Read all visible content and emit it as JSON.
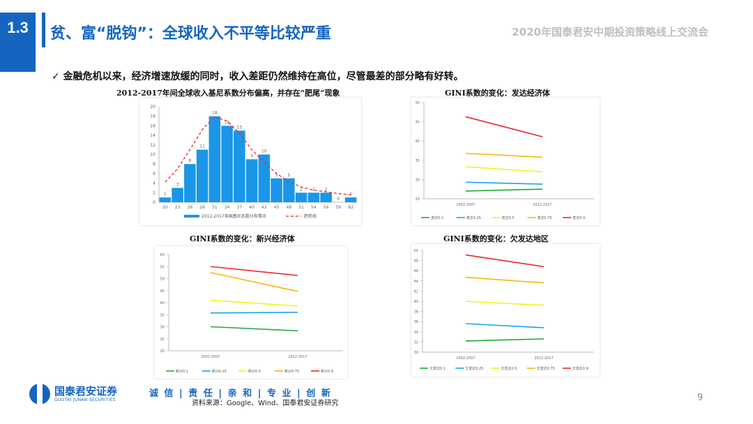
{
  "header": {
    "section_number": "1.3",
    "title": "贫、富“脱钩”：全球收入不平等比较严重",
    "conference": "2020年国泰君安中期投资策略线上交流会"
  },
  "bullet": "✓ 金融危机以来，经济增速放缓的同时，收入差距仍然维持在高位，尽管最差的部分略有好转。",
  "chart_titles": {
    "hist": "2012-2017年间全球收入基尼系数分布偏高，并存在“肥尾”现象",
    "developed": "GINI系数的变化：发达经济体",
    "emerging": "GINI系数的变化：新兴经济体",
    "underdeveloped": "GINI系数的变化：欠发达地区"
  },
  "chart_data": [
    {
      "type": "bar",
      "id": "hist",
      "categories": [
        "20",
        "23",
        "26",
        "28",
        "31",
        "34",
        "37",
        "40",
        "42",
        "45",
        "48",
        "51",
        "54",
        "56",
        "59",
        "62"
      ],
      "values": [
        1,
        3,
        8,
        11,
        18,
        16,
        15,
        9,
        10,
        5,
        5,
        2,
        2,
        2,
        0,
        1
      ],
      "trend": [
        4.2,
        7.0,
        11.0,
        15.2,
        17.9,
        17.0,
        14.5,
        11.0,
        8.4,
        6.0,
        4.3,
        3.2,
        2.5,
        2.2,
        1.8,
        1.6
      ],
      "ylim": [
        0,
        20
      ],
      "yticks": [
        0,
        2,
        4,
        6,
        8,
        10,
        12,
        14,
        16,
        18,
        20
      ],
      "legend": [
        "2012-2017各国基尼系数分布情况",
        "趋势线"
      ],
      "colors": {
        "bar": "#1a96e8",
        "trend": "#e8262b"
      }
    },
    {
      "type": "line",
      "id": "developed",
      "categories": [
        "2002-2007",
        "2012-2017"
      ],
      "ylim": [
        25,
        50
      ],
      "yticks": [
        25,
        30,
        35,
        40,
        45,
        50
      ],
      "series": [
        {
          "name": "发达0.1",
          "values": [
            27.0,
            27.5
          ],
          "color": "#22a83c"
        },
        {
          "name": "发达0.25",
          "values": [
            29.3,
            28.8
          ],
          "color": "#1aa3e8"
        },
        {
          "name": "发达0.5",
          "values": [
            33.3,
            32.0
          ],
          "color": "#f2f21a"
        },
        {
          "name": "发达0.75",
          "values": [
            36.8,
            35.8
          ],
          "color": "#f5b800"
        },
        {
          "name": "发达0.9",
          "values": [
            46.3,
            41.1
          ],
          "color": "#e8262b"
        }
      ]
    },
    {
      "type": "line",
      "id": "emerging",
      "categories": [
        "2002-2007",
        "2012-2017"
      ],
      "ylim": [
        20,
        60
      ],
      "yticks": [
        20,
        25,
        30,
        35,
        40,
        45,
        50,
        55,
        60
      ],
      "series": [
        {
          "name": "新兴0.1",
          "values": [
            30.0,
            28.3
          ],
          "color": "#22a83c"
        },
        {
          "name": "新兴0.25",
          "values": [
            35.7,
            36.0
          ],
          "color": "#1aa3e8"
        },
        {
          "name": "新兴0.5",
          "values": [
            41.0,
            38.6
          ],
          "color": "#f2f21a"
        },
        {
          "name": "新兴0.75",
          "values": [
            52.5,
            44.7
          ],
          "color": "#f5b800"
        },
        {
          "name": "新兴0.9",
          "values": [
            55.0,
            51.3
          ],
          "color": "#e8262b"
        }
      ]
    },
    {
      "type": "line",
      "id": "underdeveloped",
      "categories": [
        "2002-2007",
        "2012-2017"
      ],
      "ylim": [
        30,
        50
      ],
      "yticks": [
        30,
        32,
        34,
        36,
        38,
        40,
        42,
        44,
        46,
        48,
        50
      ],
      "series": [
        {
          "name": "欠发达0.1",
          "values": [
            32.2,
            32.6
          ],
          "color": "#22a83c"
        },
        {
          "name": "欠发达0.25",
          "values": [
            35.6,
            34.8
          ],
          "color": "#1aa3e8"
        },
        {
          "name": "欠发达0.5",
          "values": [
            40.0,
            39.2
          ],
          "color": "#f2f21a"
        },
        {
          "name": "欠发达0.75",
          "values": [
            44.7,
            43.6
          ],
          "color": "#f5b800"
        },
        {
          "name": "欠发达0.9",
          "values": [
            49.1,
            46.8
          ],
          "color": "#e8262b"
        }
      ]
    }
  ],
  "footer": {
    "logo_cn": "国泰君安证券",
    "logo_en": "GUOTAI JUNAN SECURITIES",
    "slogan": "诚 信 | 责 任 | 亲 和 | 专 业 | 创 新",
    "source": "资料来源：Google、Wind、国泰君安证券研究",
    "page": "9"
  }
}
